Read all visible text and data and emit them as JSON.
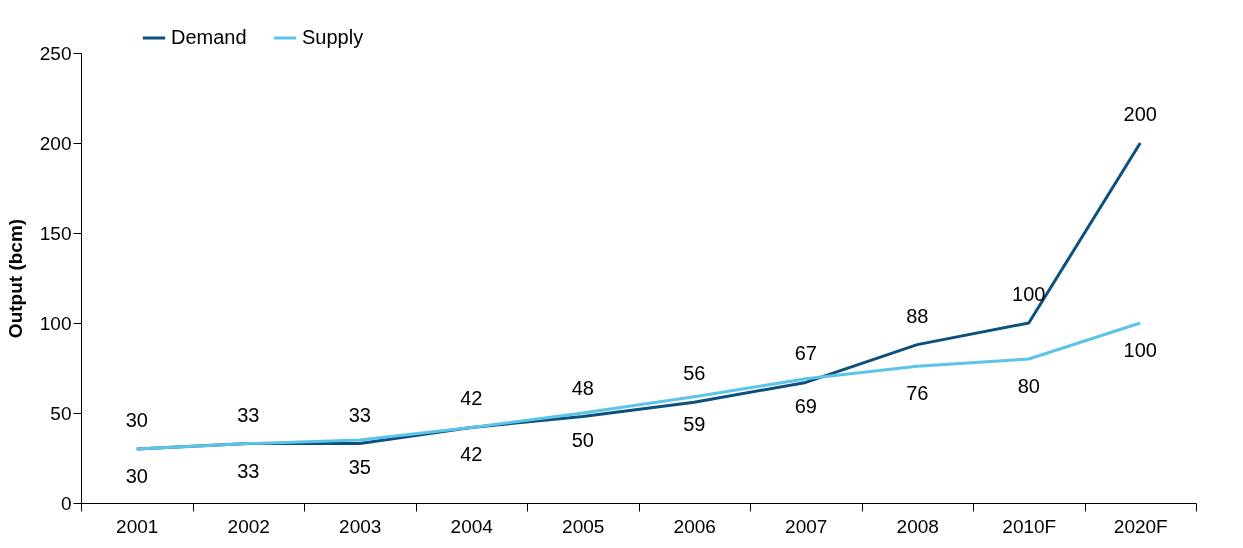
{
  "chart_data": {
    "type": "line",
    "ylabel": "Output (bcm)",
    "categories": [
      "2001",
      "2002",
      "2003",
      "2004",
      "2005",
      "2006",
      "2007",
      "2008",
      "2010F",
      "2020F"
    ],
    "series": [
      {
        "name": "Demand",
        "color": "#0d4f7d",
        "values": [
          30,
          33,
          33,
          42,
          48,
          56,
          67,
          88,
          100,
          200
        ]
      },
      {
        "name": "Supply",
        "color": "#5bc4e8",
        "values": [
          30,
          33,
          35,
          42,
          50,
          59,
          69,
          76,
          80,
          100
        ]
      }
    ],
    "ylim": [
      0,
      250
    ],
    "yticks": [
      0,
      50,
      100,
      150,
      200,
      250
    ],
    "grid": false,
    "legend": "top left",
    "data_labels": true,
    "marker": "none",
    "line_style": "solid"
  }
}
